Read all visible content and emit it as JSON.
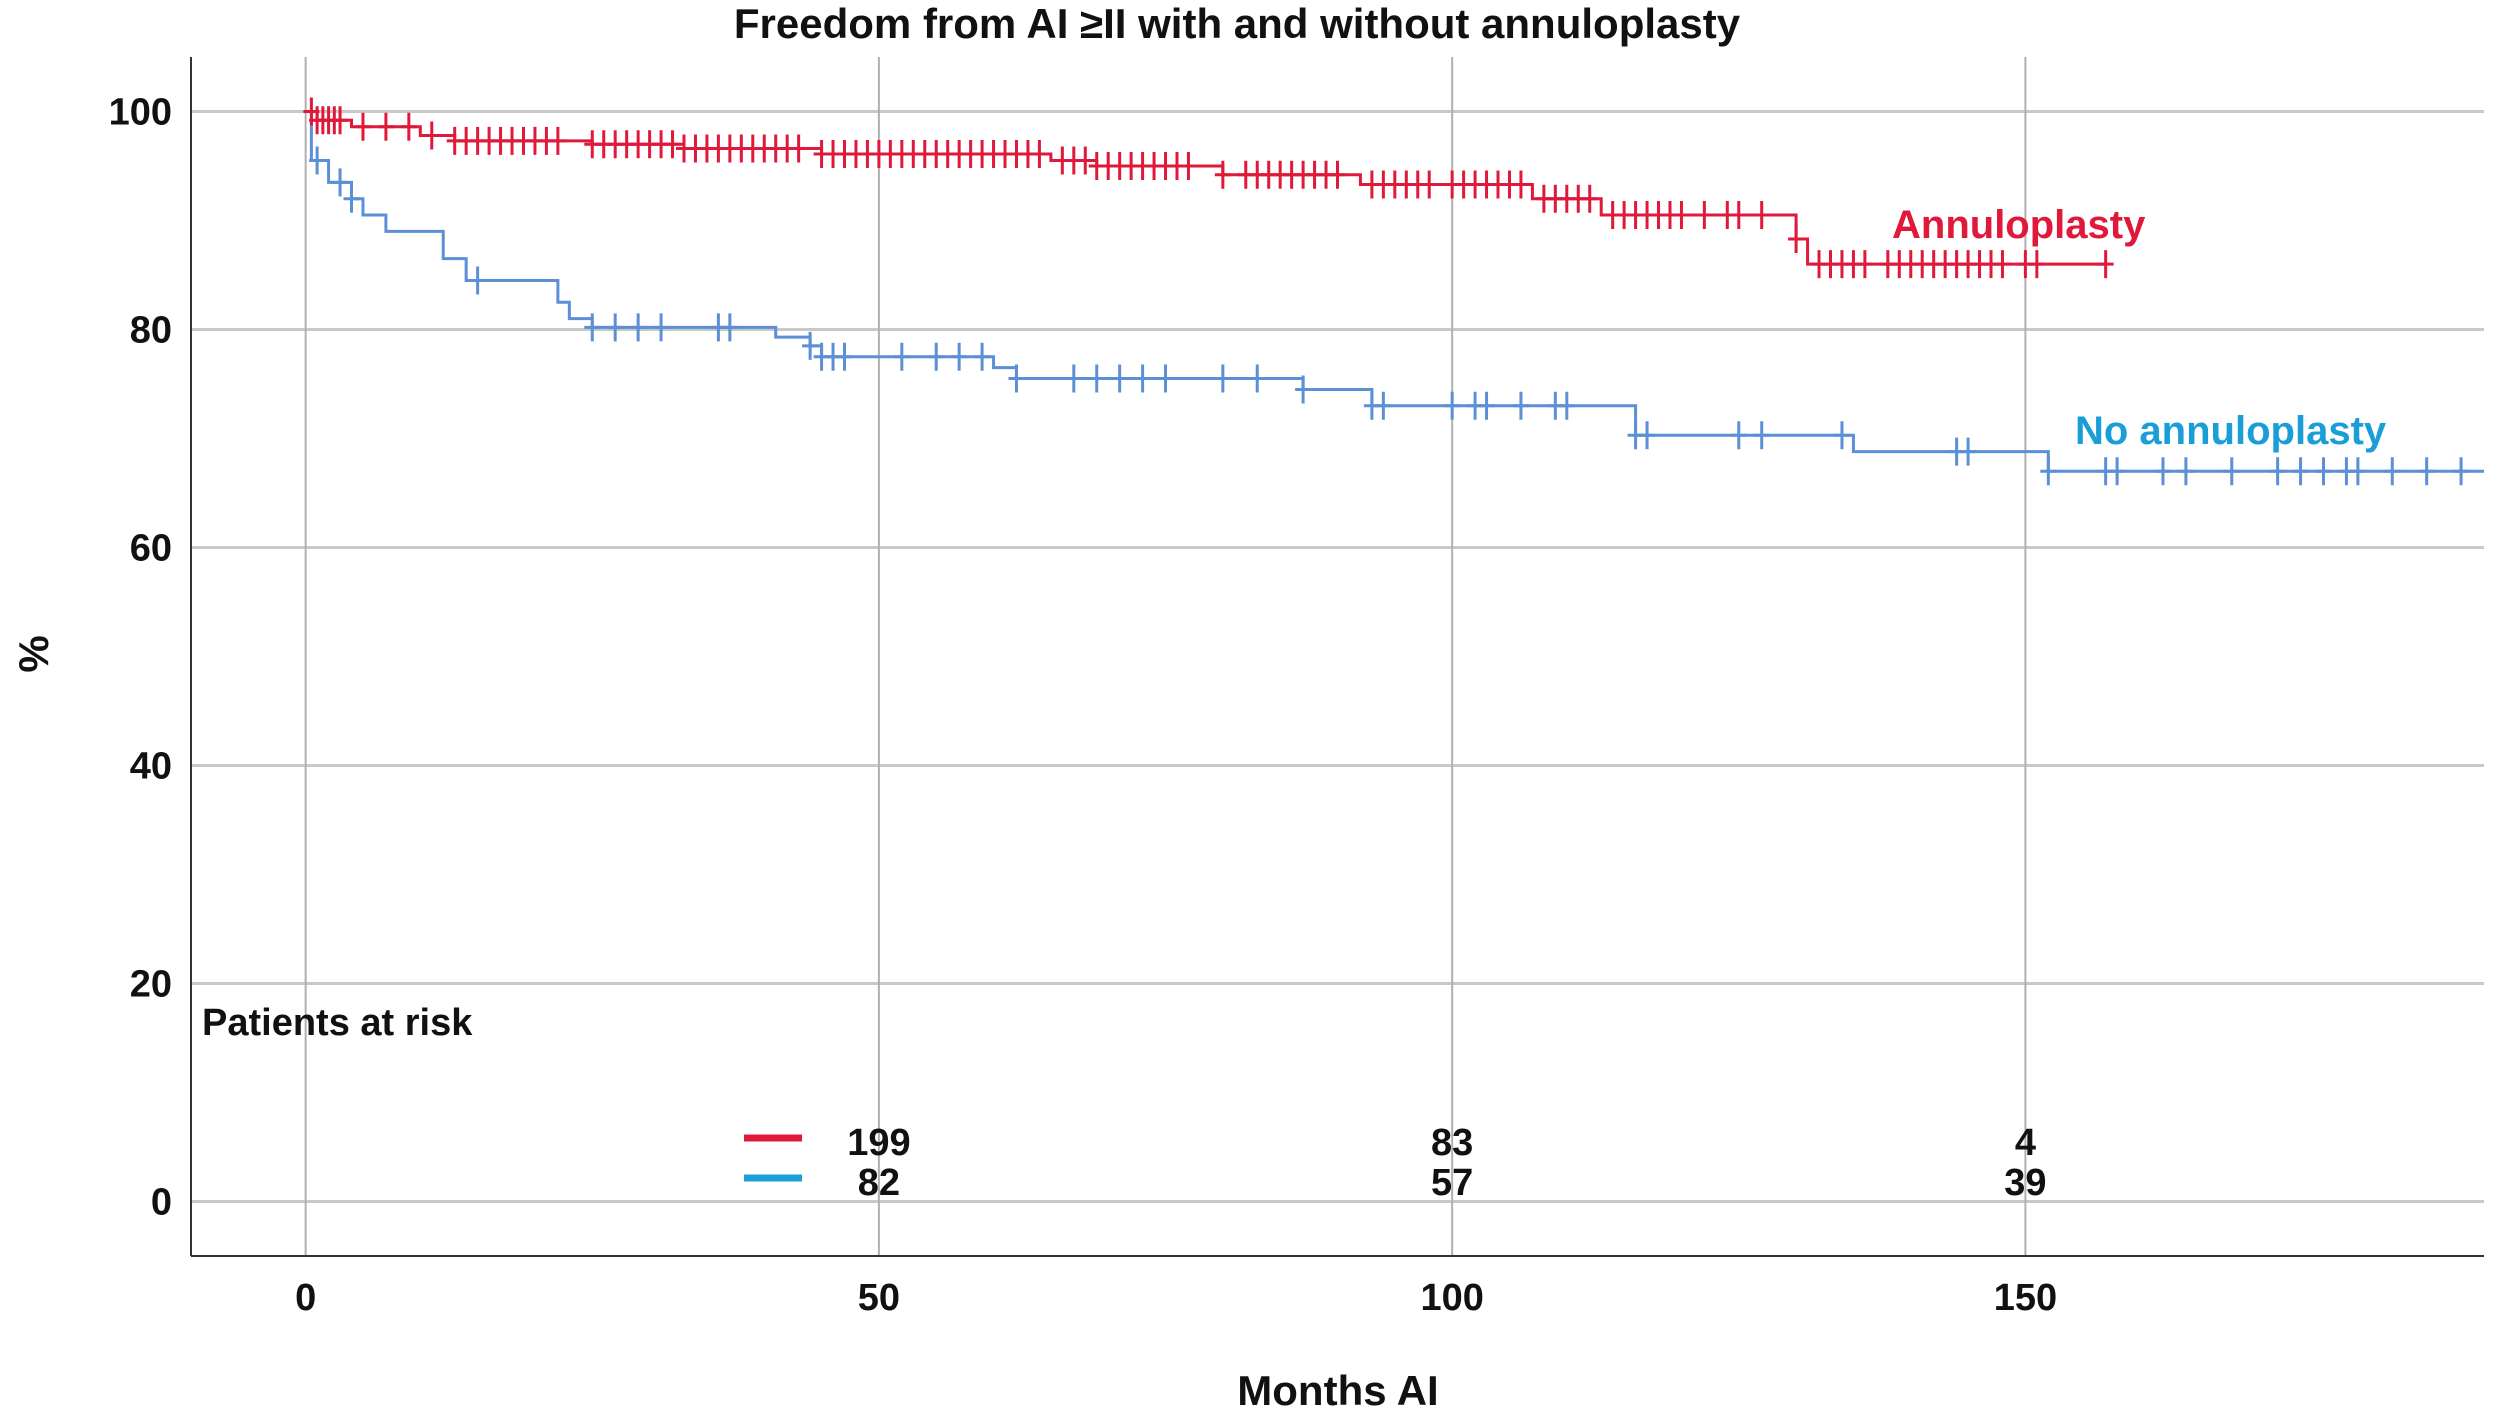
{
  "chart_data": {
    "type": "line",
    "subtype": "kaplan-meier",
    "title": "Freedom from AI ≥II with and without annuloplasty",
    "xlabel": "Months AI",
    "ylabel": "%",
    "xlim": [
      -10,
      190
    ],
    "ylim": [
      -5,
      105
    ],
    "xticks": [
      0,
      50,
      100,
      150
    ],
    "yticks": [
      0,
      20,
      40,
      60,
      80,
      100
    ],
    "grid": true,
    "series": [
      {
        "name": "Annuloplasty",
        "color": "#e0183a",
        "steps": [
          [
            0,
            100
          ],
          [
            1,
            99.2
          ],
          [
            4,
            98.6
          ],
          [
            10,
            97.8
          ],
          [
            13,
            97.3
          ],
          [
            25,
            97.0
          ],
          [
            33,
            96.6
          ],
          [
            45,
            96.1
          ],
          [
            65,
            95.5
          ],
          [
            69,
            95.0
          ],
          [
            80,
            94.2
          ],
          [
            92,
            93.3
          ],
          [
            107,
            92.0
          ],
          [
            113,
            90.5
          ],
          [
            130,
            88.3
          ],
          [
            131,
            86.0
          ]
        ],
        "end": 157,
        "censored": [
          0.5,
          1,
          1.5,
          2,
          2.5,
          3,
          5,
          7,
          9,
          11,
          13,
          14,
          15,
          16,
          17,
          18,
          19,
          20,
          21,
          22,
          25,
          26,
          27,
          28,
          29,
          30,
          31,
          32,
          33,
          34,
          35,
          36,
          37,
          38,
          39,
          40,
          41,
          42,
          43,
          45,
          46,
          47,
          48,
          49,
          50,
          51,
          52,
          53,
          54,
          55,
          56,
          57,
          58,
          59,
          60,
          61,
          62,
          63,
          64,
          66,
          67,
          68,
          69,
          70,
          71,
          72,
          73,
          74,
          75,
          76,
          77,
          80,
          82,
          83,
          84,
          85,
          86,
          87,
          88,
          89,
          90,
          93,
          94,
          95,
          96,
          97,
          98,
          100,
          101,
          102,
          103,
          104,
          105,
          106,
          108,
          109,
          110,
          111,
          112,
          114,
          115,
          116,
          117,
          118,
          119,
          120,
          122,
          124,
          125,
          127,
          130,
          132,
          133,
          134,
          135,
          136,
          138,
          139,
          140,
          141,
          142,
          143,
          144,
          145,
          146,
          147,
          148,
          150,
          151,
          157
        ]
      },
      {
        "name": "No annuloplasty",
        "color": "#5b8fd6",
        "label_color": "#1a9ed8",
        "steps": [
          [
            0,
            100
          ],
          [
            0.5,
            95.5
          ],
          [
            2,
            93.5
          ],
          [
            4,
            92.0
          ],
          [
            5,
            90.5
          ],
          [
            7,
            89.0
          ],
          [
            12,
            86.5
          ],
          [
            14,
            84.5
          ],
          [
            22,
            82.5
          ],
          [
            23,
            81.0
          ],
          [
            25,
            80.2
          ],
          [
            41,
            79.3
          ],
          [
            44,
            78.5
          ],
          [
            45,
            77.5
          ],
          [
            60,
            76.5
          ],
          [
            62,
            75.5
          ],
          [
            87,
            74.5
          ],
          [
            93,
            73.0
          ],
          [
            116,
            70.3
          ],
          [
            135,
            68.8
          ],
          [
            152,
            67.0
          ]
        ],
        "end": 190,
        "censored": [
          1,
          3,
          4,
          15,
          25,
          27,
          29,
          31,
          36,
          37,
          44,
          45,
          46,
          47,
          52,
          55,
          57,
          59,
          62,
          67,
          69,
          71,
          73,
          75,
          80,
          83,
          87,
          93,
          94,
          100,
          102,
          103,
          106,
          109,
          110,
          116,
          117,
          125,
          127,
          134,
          144,
          145,
          152,
          157,
          158,
          162,
          164,
          168,
          172,
          174,
          176,
          178,
          179,
          182,
          185,
          188
        ]
      }
    ],
    "annotations": {
      "annuloplasty": "Annuloplasty",
      "no_annuloplasty": "No annuloplasty"
    },
    "risk_table": {
      "title": "Patients at risk",
      "times": [
        50,
        100,
        150
      ],
      "rows": [
        {
          "group": "Annuloplasty",
          "color": "#e0183a",
          "values": [
            "199",
            "83",
            "4"
          ]
        },
        {
          "group": "No annuloplasty",
          "color": "#1a9ed8",
          "values": [
            "82",
            "57",
            "39"
          ]
        }
      ]
    }
  }
}
